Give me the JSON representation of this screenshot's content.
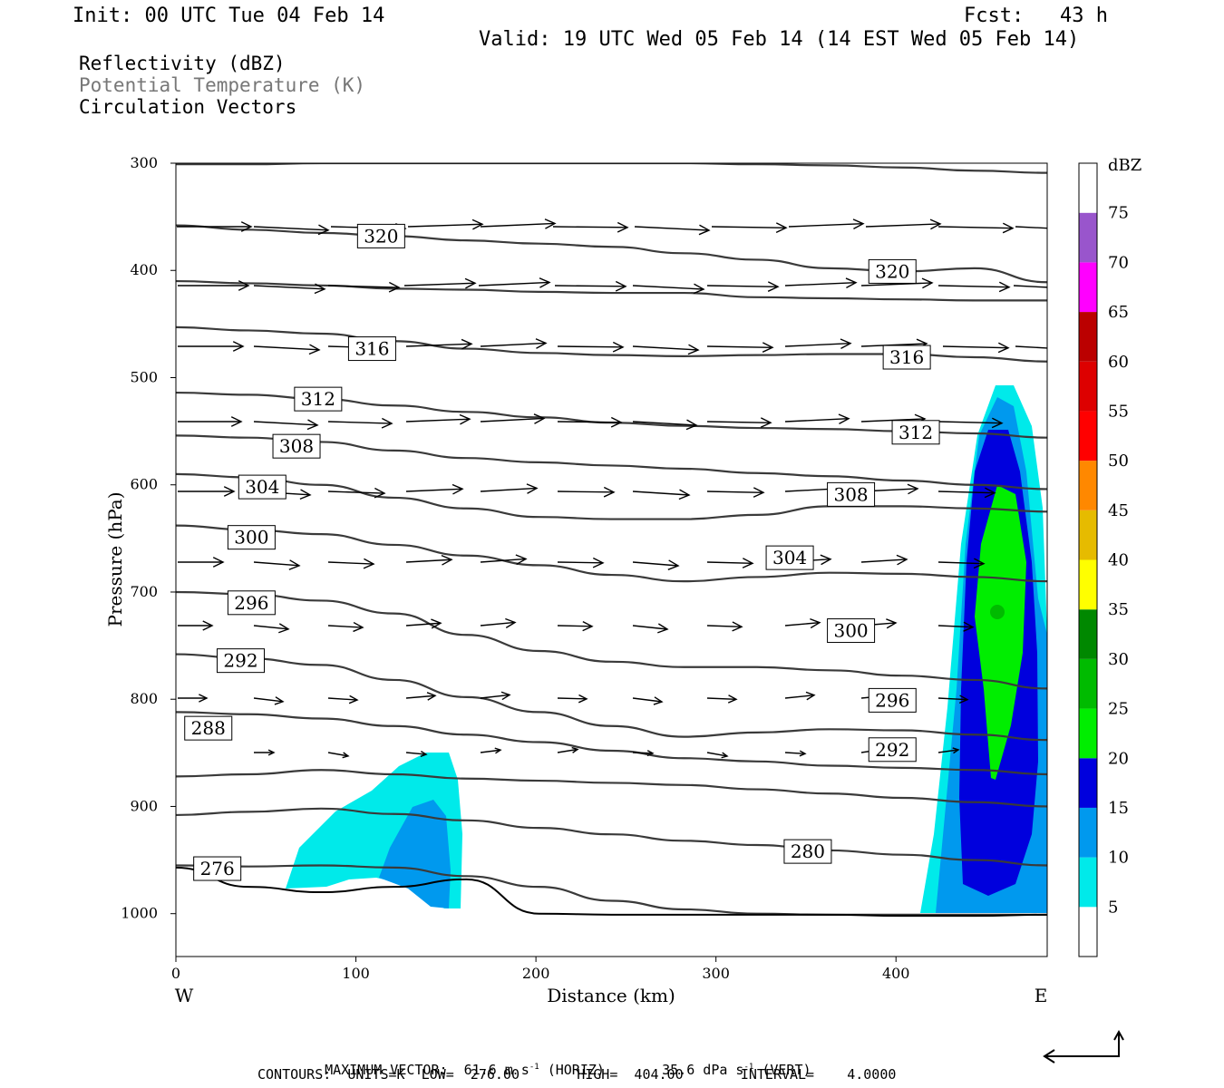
{
  "header": {
    "init": "Init: 00 UTC Tue 04 Feb 14",
    "fcst": "Fcst:   43 h",
    "valid": "Valid: 19 UTC Wed 05 Feb 14 (14 EST Wed 05 Feb 14)"
  },
  "legend": {
    "line1": "Reflectivity (dBZ)",
    "line2": "Potential Temperature (K)",
    "line3": "Circulation Vectors",
    "line2_color": "#777777"
  },
  "footer": {
    "max_vector_label": "MAXIMUM VECTOR:",
    "max_horiz": "61.6 m s",
    "max_horiz_tail": " (HORIZ)",
    "max_vert": "35.6 dPa s",
    "max_vert_tail": " (VERT)",
    "exp": "-1",
    "contours": "CONTOURS:  UNITS=K  LOW=  276.00       HIGH=  404.00       INTERVAL=    4.0000"
  },
  "chart_data": {
    "type": "cross-section",
    "xlabel": "Distance (km)",
    "ylabel": "Pressure (hPa)",
    "xlim": [
      0,
      484
    ],
    "ylim": [
      1040,
      300
    ],
    "x_ticks": [
      "0",
      "100",
      "200",
      "300",
      "400"
    ],
    "x_tick_values": [
      0,
      100,
      200,
      300,
      400
    ],
    "y_ticks": [
      "300",
      "400",
      "500",
      "600",
      "700",
      "800",
      "900",
      "1000"
    ],
    "y_tick_values": [
      300,
      400,
      500,
      600,
      700,
      800,
      900,
      1000
    ],
    "west_label": "W",
    "east_label": "E",
    "colorbar": {
      "unit": "dBZ",
      "labels": [
        "5",
        "10",
        "15",
        "20",
        "25",
        "30",
        "35",
        "40",
        "45",
        "50",
        "55",
        "60",
        "65",
        "70",
        "75"
      ],
      "colors": [
        "#ffffff",
        "#00eaea",
        "#0099ee",
        "#0000dd",
        "#00ee00",
        "#00bb00",
        "#008800",
        "#ffff00",
        "#e6bb00",
        "#ff8800",
        "#ff0000",
        "#dd0000",
        "#bb0000",
        "#ff00ff",
        "#9955cc",
        "#ffffff"
      ]
    },
    "theta_contour_labels": [
      {
        "text": "320",
        "x": 114,
        "p": 368
      },
      {
        "text": "320",
        "x": 398,
        "p": 401
      },
      {
        "text": "316",
        "x": 109,
        "p": 473
      },
      {
        "text": "316",
        "x": 406,
        "p": 481
      },
      {
        "text": "312",
        "x": 79,
        "p": 520
      },
      {
        "text": "312",
        "x": 411,
        "p": 551
      },
      {
        "text": "308",
        "x": 67,
        "p": 564
      },
      {
        "text": "308",
        "x": 375,
        "p": 609
      },
      {
        "text": "304",
        "x": 48,
        "p": 602
      },
      {
        "text": "304",
        "x": 341,
        "p": 668
      },
      {
        "text": "300",
        "x": 42,
        "p": 649
      },
      {
        "text": "300",
        "x": 375,
        "p": 736
      },
      {
        "text": "296",
        "x": 42,
        "p": 710
      },
      {
        "text": "296",
        "x": 398,
        "p": 801
      },
      {
        "text": "292",
        "x": 36,
        "p": 764
      },
      {
        "text": "292",
        "x": 398,
        "p": 847
      },
      {
        "text": "288",
        "x": 18,
        "p": 827
      },
      {
        "text": "280",
        "x": 351,
        "p": 942
      },
      {
        "text": "276",
        "x": 23,
        "p": 958
      }
    ],
    "theta_contours": [
      {
        "p": [
          301,
          301,
          300,
          300,
          300,
          300,
          300,
          300,
          301,
          302,
          304,
          307,
          309
        ]
      },
      {
        "p": [
          358,
          362,
          365,
          368,
          372,
          375,
          378,
          384,
          390,
          398,
          401,
          398,
          411
        ]
      },
      {
        "p": [
          410,
          412,
          414,
          417,
          418,
          420,
          421,
          421,
          425,
          426,
          427,
          428,
          428
        ]
      },
      {
        "p": [
          453,
          456,
          459,
          466,
          473,
          477,
          479,
          480,
          479,
          478,
          478,
          481,
          485
        ]
      },
      {
        "p": [
          514,
          516,
          520,
          526,
          532,
          537,
          542,
          545,
          547,
          548,
          550,
          552,
          556
        ]
      },
      {
        "p": [
          554,
          556,
          560,
          568,
          575,
          579,
          582,
          585,
          589,
          592,
          596,
          600,
          604
        ]
      },
      {
        "p": [
          590,
          593,
          600,
          612,
          622,
          630,
          632,
          632,
          628,
          620,
          620,
          622,
          625
        ]
      },
      {
        "p": [
          638,
          642,
          646,
          656,
          666,
          675,
          684,
          690,
          686,
          682,
          683,
          686,
          690
        ]
      },
      {
        "p": [
          700,
          702,
          708,
          720,
          740,
          755,
          765,
          770,
          770,
          773,
          778,
          782,
          790
        ]
      },
      {
        "p": [
          758,
          762,
          768,
          782,
          798,
          812,
          825,
          835,
          831,
          828,
          829,
          833,
          838
        ]
      },
      {
        "p": [
          812,
          814,
          818,
          825,
          833,
          840,
          848,
          855,
          858,
          862,
          864,
          866,
          870
        ]
      },
      {
        "p": [
          872,
          870,
          866,
          870,
          874,
          876,
          878,
          880,
          884,
          888,
          892,
          896,
          900
        ]
      },
      {
        "p": [
          908,
          905,
          902,
          907,
          913,
          920,
          926,
          932,
          936,
          941,
          945,
          950,
          955
        ]
      },
      {
        "p": [
          955,
          956,
          955,
          957,
          965,
          975,
          988,
          996,
          1000,
          1001,
          1001,
          1001,
          1001
        ]
      }
    ],
    "terrain_p": [
      957,
      975,
      980,
      975,
      968,
      1000,
      1001,
      1001,
      1001,
      1001,
      1002,
      1002,
      1001
    ]
  }
}
